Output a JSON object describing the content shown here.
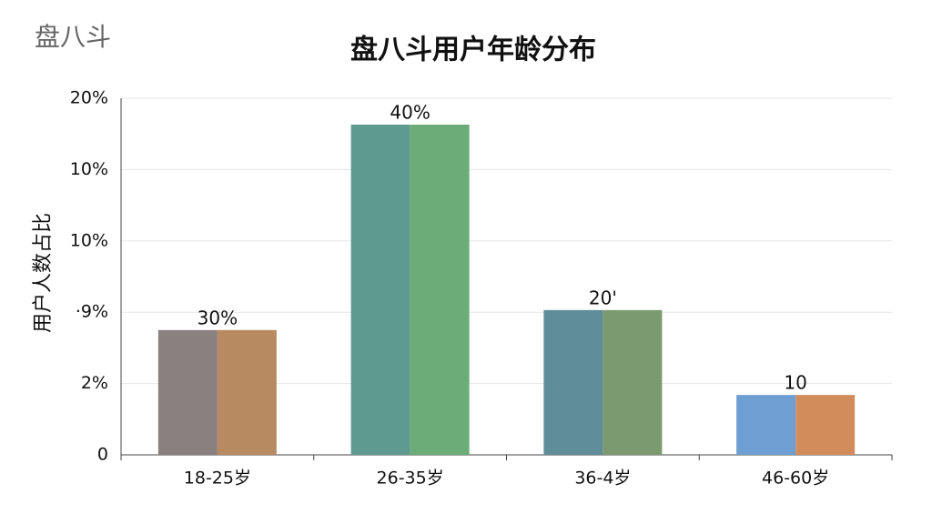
{
  "watermark": "盘八斗",
  "chart_data": {
    "type": "bar",
    "title": "盘八斗用户年龄分布",
    "ylabel": "用户人数占比",
    "categories": [
      "18-25岁",
      "26-35岁",
      "36-4岁",
      "46-60岁"
    ],
    "series": [
      {
        "colors": [
          "#8a8080",
          "#5f9a90",
          "#5f8d98",
          "#6f9fd2"
        ],
        "values": [
          1.75,
          4.63,
          2.03,
          0.84
        ]
      },
      {
        "colors": [
          "#b88a62",
          "#6cac78",
          "#7c9a70",
          "#d28c5c"
        ],
        "values": [
          1.75,
          4.63,
          2.03,
          0.84
        ]
      }
    ],
    "annotations": [
      "30%",
      "40%",
      "20'",
      "10"
    ],
    "ylim": [
      0,
      5
    ],
    "yticks": [
      {
        "value": 0,
        "label": "0"
      },
      {
        "value": 1,
        "label": "2%"
      },
      {
        "value": 2,
        "label": "·9%"
      },
      {
        "value": 3,
        "label": "10%"
      },
      {
        "value": 4,
        "label": "10%"
      },
      {
        "value": 5,
        "label": "20%"
      }
    ],
    "grid": true
  }
}
